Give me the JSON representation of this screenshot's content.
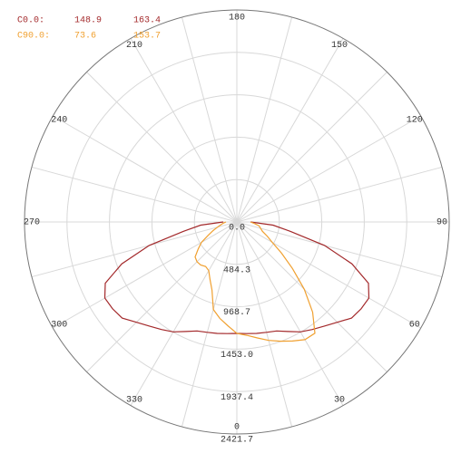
{
  "chart_data": {
    "type": "polar",
    "angles": [
      270,
      275,
      280,
      285,
      290,
      295,
      300,
      305,
      310,
      315,
      320,
      325,
      330,
      335,
      340,
      345,
      350,
      355,
      0,
      5,
      10,
      15,
      20,
      25,
      30,
      35,
      40,
      45,
      50,
      55,
      60,
      65,
      70,
      75,
      80,
      85,
      90
    ],
    "series": [
      {
        "name": "C0.0:",
        "legend_values": [
          148.9,
          163.4
        ],
        "color": "#a3292b",
        "values": [
          155,
          414,
          621,
          1035,
          1397,
          1656,
          1739,
          1730,
          1708,
          1620,
          1552,
          1500,
          1449,
          1380,
          1325,
          1305,
          1293,
          1280,
          1273,
          1280,
          1293,
          1305,
          1325,
          1380,
          1449,
          1500,
          1552,
          1620,
          1708,
          1730,
          1739,
          1656,
          1397,
          1035,
          621,
          414,
          155
        ]
      },
      {
        "name": "C90.0:",
        "legend_values": [
          73.6,
          153.7
        ],
        "color": "#f0a030",
        "values": [
          124,
          155,
          186,
          228,
          290,
          362,
          466,
          538,
          621,
          642,
          642,
          621,
          642,
          724,
          828,
          1035,
          1118,
          1190,
          1273,
          1300,
          1345,
          1400,
          1449,
          1500,
          1552,
          1552,
          1345,
          1087,
          828,
          621,
          466,
          380,
          310,
          280,
          259,
          200,
          155
        ]
      }
    ],
    "rlim": [
      0,
      2421.7
    ],
    "rticks": [
      {
        "value": 0,
        "label": "0.0"
      },
      484.3,
      968.7,
      {
        "value": 1453,
        "label": "1453.0"
      },
      1937.4,
      2421.7
    ],
    "angle_ticks": [
      0,
      30,
      60,
      90,
      120,
      150,
      180,
      210,
      240,
      270,
      300,
      330
    ],
    "angle_grid": [
      0,
      15,
      30,
      45,
      60,
      75,
      90,
      105,
      120,
      135,
      150,
      165,
      180,
      195,
      210,
      225,
      240,
      255,
      270,
      285,
      300,
      315,
      330,
      345
    ]
  }
}
